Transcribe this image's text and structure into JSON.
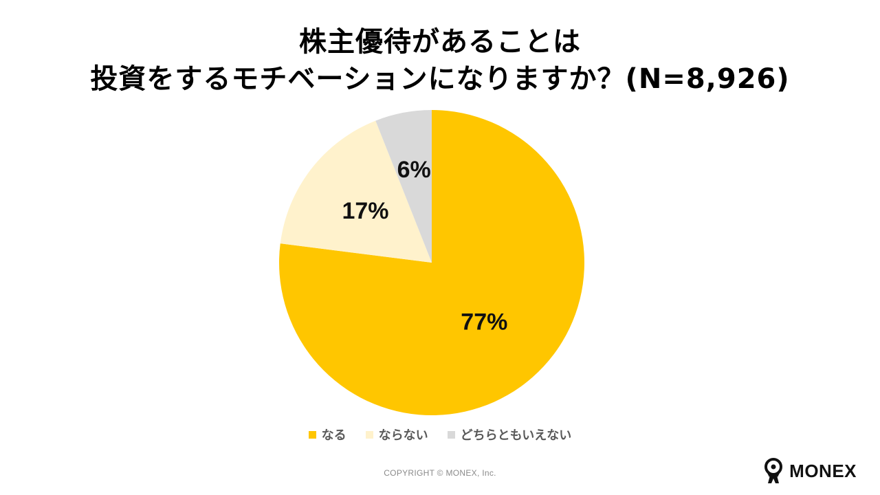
{
  "title": {
    "line1": "株主優待があることは",
    "line2": "投資をするモチベーションになりますか？(N=8,926)"
  },
  "chart_data": {
    "type": "pie",
    "categories": [
      "なる",
      "ならない",
      "どちらともいえない"
    ],
    "values": [
      77,
      17,
      6
    ],
    "labels": [
      "77%",
      "17%",
      "6%"
    ],
    "colors": [
      "#FFC600",
      "#FFF2CC",
      "#D9D9D9"
    ],
    "start": "12 o'clock, clockwise",
    "legend_position": "bottom"
  },
  "footer": {
    "copyright": "COPYRIGHT © MONEX, Inc."
  },
  "logo": {
    "text": "MONEX",
    "icon": "monex-person-icon"
  }
}
